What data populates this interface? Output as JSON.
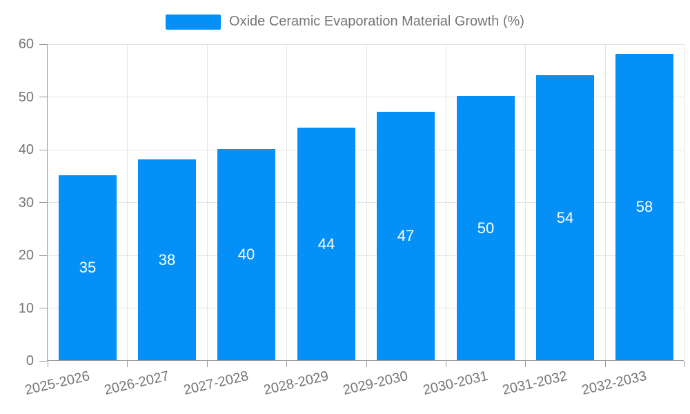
{
  "legend": {
    "label": "Oxide Ceramic Evaporation Material Growth (%)"
  },
  "colors": {
    "bar": "#0590F8",
    "grid": "#e4e4e4",
    "axis": "#9a9a9a",
    "tick_text": "#757575",
    "value_label": "#ffffff",
    "background": "#ffffff"
  },
  "chart_data": {
    "type": "bar",
    "title": "Oxide Ceramic Evaporation Material Growth (%)",
    "categories": [
      "2025-2026",
      "2026-2027",
      "2027-2028",
      "2028-2029",
      "2029-2030",
      "2030-2031",
      "2031-2032",
      "2032-2033"
    ],
    "values": [
      35,
      38,
      40,
      44,
      47,
      50,
      54,
      58
    ],
    "xlabel": "",
    "ylabel": "",
    "ylim": [
      0,
      60
    ],
    "yticks": [
      0,
      10,
      20,
      30,
      40,
      50,
      60
    ],
    "grid": true,
    "legend_position": "top-center",
    "bar_color": "#0590F8",
    "value_label_position": "inside-center",
    "xtick_rotation_deg": -13
  }
}
